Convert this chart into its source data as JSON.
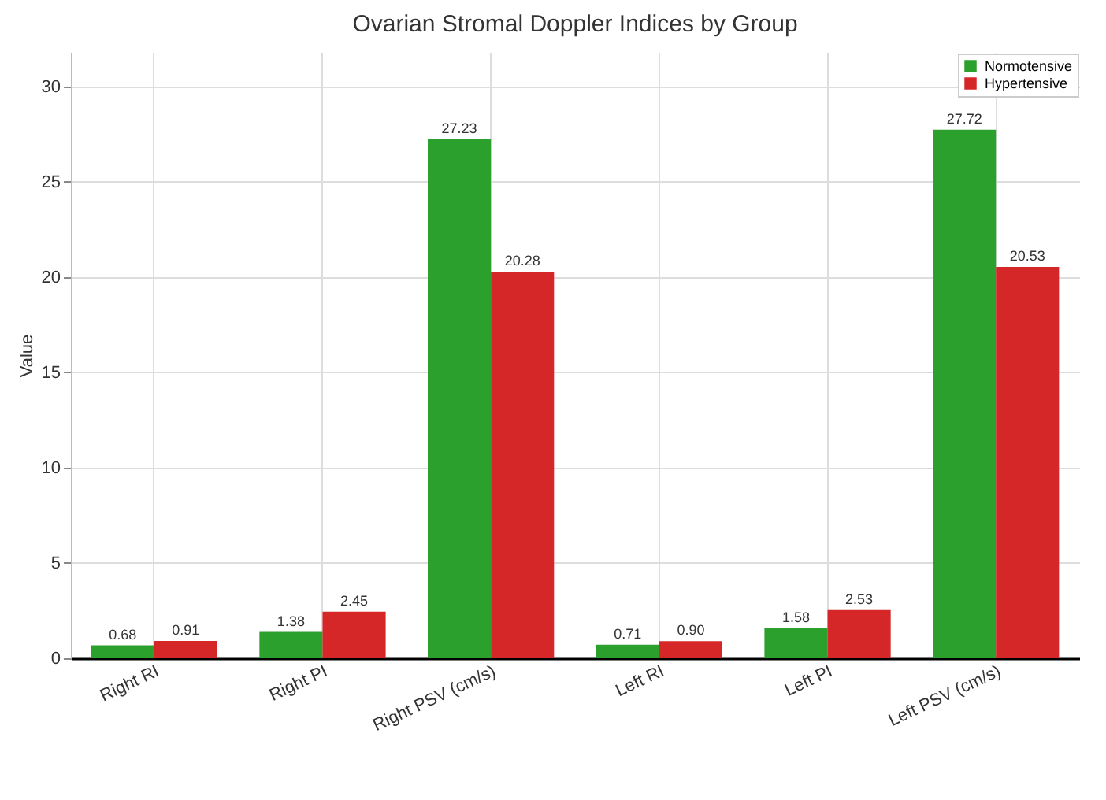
{
  "chart_data": {
    "type": "bar",
    "title": "Ovarian Stromal Doppler Indices by Group",
    "ylabel": "Value",
    "categories": [
      "Right RI",
      "Right PI",
      "Right PSV (cm/s)",
      "Left RI",
      "Left PI",
      "Left PSV (cm/s)"
    ],
    "series": [
      {
        "name": "Normotensive",
        "color": "#2ca02c",
        "values": [
          0.68,
          1.38,
          27.23,
          0.71,
          1.58,
          27.72
        ],
        "value_labels": [
          "0.68",
          "1.38",
          "27.23",
          "0.71",
          "1.58",
          "27.72"
        ]
      },
      {
        "name": "Hypertensive",
        "color": "#d62728",
        "values": [
          0.91,
          2.45,
          20.28,
          0.9,
          2.53,
          20.53
        ],
        "value_labels": [
          "0.91",
          "2.45",
          "20.28",
          "0.90",
          "2.53",
          "20.53"
        ]
      }
    ],
    "ylim": [
      0,
      31.8
    ],
    "yticks": [
      0,
      5,
      10,
      15,
      20,
      25,
      30
    ],
    "grid": true,
    "legend": "top right"
  }
}
